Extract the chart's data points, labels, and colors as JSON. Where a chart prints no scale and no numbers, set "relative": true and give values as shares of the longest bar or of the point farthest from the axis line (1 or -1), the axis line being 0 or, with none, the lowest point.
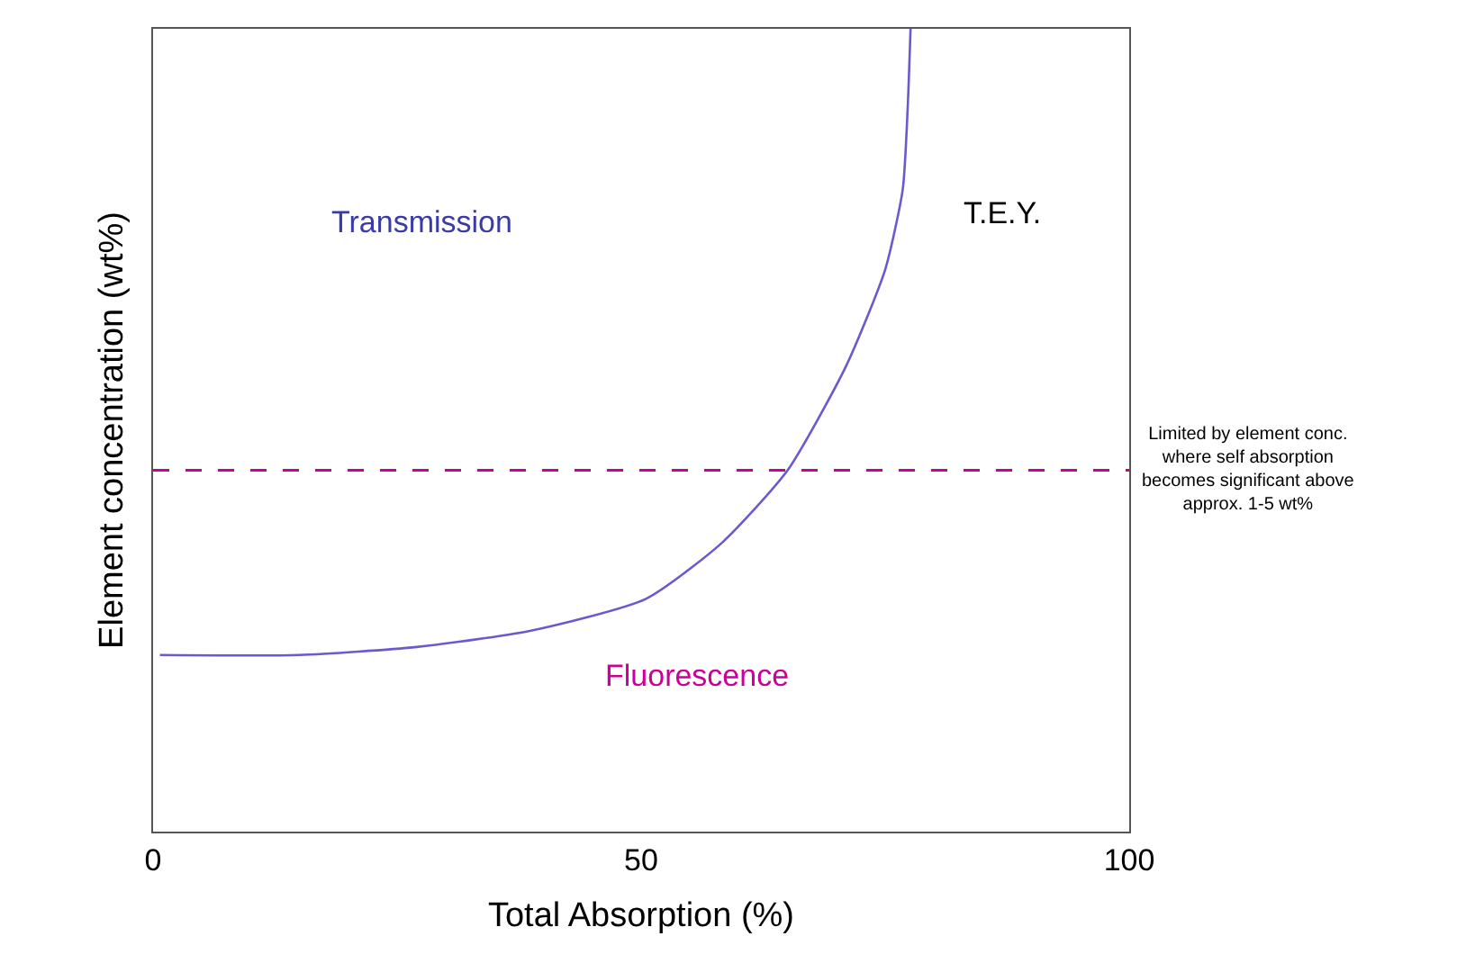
{
  "chart_data": {
    "type": "line",
    "xlabel": "Total Absorption (%)",
    "ylabel": "Element concentration (wt%)",
    "relative": true,
    "xlim": [
      0,
      100
    ],
    "xticks": [
      0,
      50,
      100
    ],
    "grid": false,
    "marker": "none",
    "line_style": "solid",
    "series": [
      {
        "color": "#6a5acd",
        "x": [
          0.7,
          15,
          27,
          38.6,
          50.5,
          58.3,
          65,
          71,
          75,
          76.8,
          77.3,
          77.6
        ],
        "values": [
          0.22,
          0.22,
          0.23,
          0.25,
          0.29,
          0.36,
          0.45,
          0.58,
          0.7,
          0.8,
          0.9,
          1
        ]
      }
    ],
    "ref_lines": [
      {
        "axis": "y",
        "value": 0.45,
        "label": "Limited by element conc.\nwhere self absorption\nbecomes significant above\napprox. 1-5 wt%",
        "color": "#cc0099",
        "line_style": "dashed"
      }
    ],
    "annotations": [
      "Transmission",
      "T.E.Y.",
      "Fluorescence"
    ]
  }
}
